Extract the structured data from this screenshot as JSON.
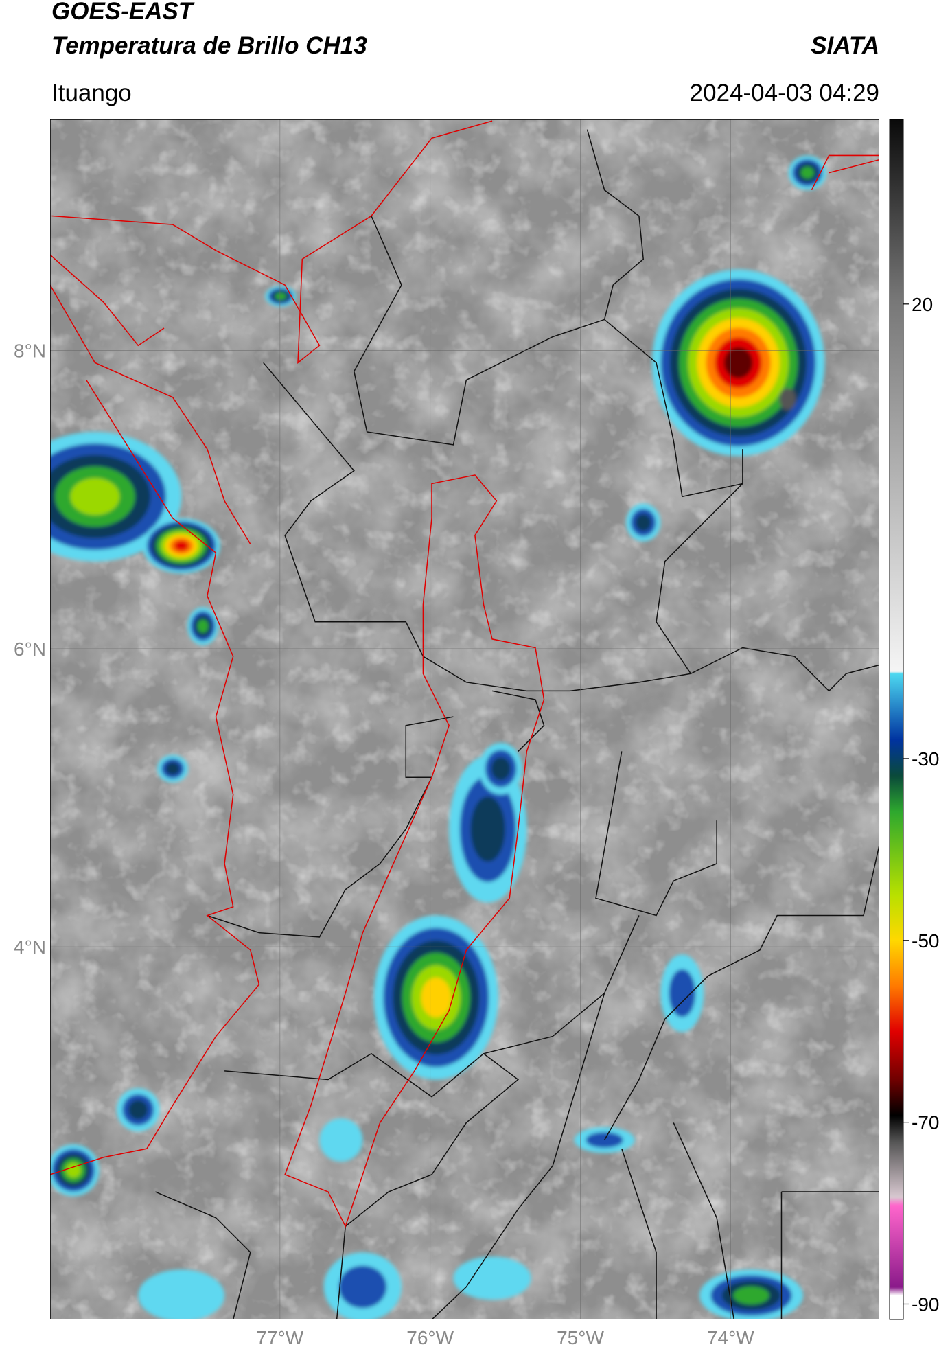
{
  "header": {
    "title": "GOES-EAST",
    "subtitle": "Temperatura de Brillo CH13",
    "credit": "SIATA",
    "location": "Ituango",
    "timestamp": "2024-04-03 04:29"
  },
  "map": {
    "xlim": [
      -78.53,
      -73.01
    ],
    "ylim": [
      1.5,
      9.55
    ],
    "grid": true,
    "xticks": [
      {
        "value": -77,
        "label": "77°W"
      },
      {
        "value": -76,
        "label": "76°W"
      },
      {
        "value": -75,
        "label": "75°W"
      },
      {
        "value": -74,
        "label": "74°W"
      }
    ],
    "yticks": [
      {
        "value": 8,
        "label": "8°N"
      },
      {
        "value": 6,
        "label": "6°N"
      },
      {
        "value": 4,
        "label": "4°N"
      }
    ]
  },
  "colorbar": {
    "ylim": [
      -91.7,
      40.3
    ],
    "ticks": [
      20,
      -30,
      -50,
      -70,
      -90
    ]
  }
}
